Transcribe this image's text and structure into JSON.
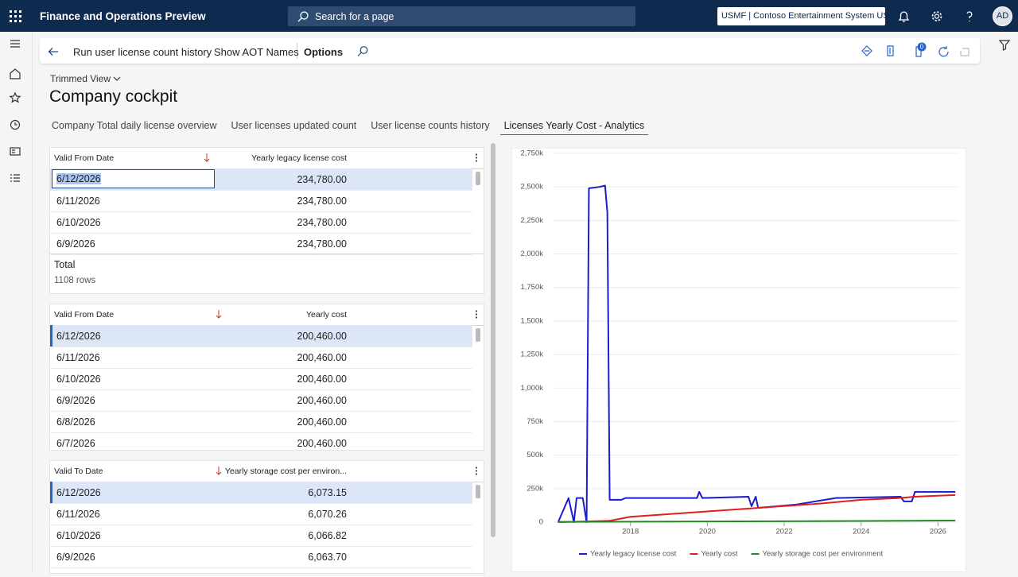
{
  "header": {
    "app_title": "Finance and Operations Preview",
    "search_placeholder": "Search for a page",
    "company": "USMF | Contoso Entertainment System USA",
    "user_initials": "AD"
  },
  "toolbar": {
    "items": [
      "Run user license count history",
      "Show AOT Names",
      "Options"
    ],
    "badge": "0"
  },
  "view": "Trimmed View",
  "page_title": "Company cockpit",
  "tabs": [
    "Company Total daily license overview",
    "User licenses updated count",
    "User license counts history",
    "Licenses Yearly Cost - Analytics"
  ],
  "active_tab": 3,
  "grids": [
    {
      "columns": [
        "Valid From Date",
        "Yearly legacy license cost"
      ],
      "rows": [
        [
          "6/12/2026",
          "234,780.00"
        ],
        [
          "6/11/2026",
          "234,780.00"
        ],
        [
          "6/10/2026",
          "234,780.00"
        ],
        [
          "6/9/2026",
          "234,780.00"
        ]
      ],
      "footer_label": "Total",
      "footer_count": "1108 rows"
    },
    {
      "columns": [
        "Valid From Date",
        "Yearly cost"
      ],
      "rows": [
        [
          "6/12/2026",
          "200,460.00"
        ],
        [
          "6/11/2026",
          "200,460.00"
        ],
        [
          "6/10/2026",
          "200,460.00"
        ],
        [
          "6/9/2026",
          "200,460.00"
        ],
        [
          "6/8/2026",
          "200,460.00"
        ],
        [
          "6/7/2026",
          "200,460.00"
        ]
      ]
    },
    {
      "columns": [
        "Valid To Date",
        "Yearly storage cost per environ..."
      ],
      "rows": [
        [
          "6/12/2026",
          "6,073.15"
        ],
        [
          "6/11/2026",
          "6,070.26"
        ],
        [
          "6/10/2026",
          "6,066.82"
        ],
        [
          "6/9/2026",
          "6,063.70"
        ]
      ]
    }
  ],
  "chart_data": {
    "type": "line",
    "xlim": [
      2016,
      2026.55
    ],
    "xticks": [
      2018,
      2020,
      2022,
      2024,
      2026
    ],
    "ylim": [
      0,
      2750000
    ],
    "yticks": [
      {
        "value": 0,
        "label": "0"
      },
      {
        "value": 250000,
        "label": "250k"
      },
      {
        "value": 500000,
        "label": "500k"
      },
      {
        "value": 750000,
        "label": "750k"
      },
      {
        "value": 1000000,
        "label": "1,000k"
      },
      {
        "value": 1250000,
        "label": "1,250k"
      },
      {
        "value": 1500000,
        "label": "1,500k"
      },
      {
        "value": 1750000,
        "label": "1,750k"
      },
      {
        "value": 2000000,
        "label": "2,000k"
      },
      {
        "value": 2250000,
        "label": "2,250k"
      },
      {
        "value": 2500000,
        "label": "2,500k"
      },
      {
        "value": 2750000,
        "label": "2,750k"
      }
    ],
    "grid": true,
    "series": [
      {
        "name": "Yearly legacy license cost",
        "color": "#1c1ccf",
        "x": [
          2016.12,
          2016.39,
          2016.53,
          2016.6,
          2016.76,
          2016.86,
          2016.92,
          2017.19,
          2017.34,
          2017.4,
          2017.46,
          2017.77,
          2017.87,
          2019.73,
          2019.79,
          2019.87,
          2021.07,
          2021.15,
          2021.26,
          2021.32,
          2022.31,
          2023.34,
          2025.03,
          2025.11,
          2025.32,
          2025.4,
          2026.45
        ],
        "values": [
          0,
          180000,
          0,
          180000,
          180000,
          0,
          2490000,
          2500000,
          2510000,
          2310000,
          167000,
          167000,
          180000,
          180000,
          226000,
          180000,
          190000,
          119000,
          190000,
          107000,
          131000,
          180000,
          190000,
          155000,
          155000,
          226000,
          226000
        ]
      },
      {
        "name": "Yearly cost",
        "color": "#e01e1e",
        "x": [
          2016.12,
          2017.45,
          2018,
          2019,
          2020,
          2021,
          2022,
          2023,
          2024,
          2025,
          2025.4,
          2025.8,
          2026.45
        ],
        "values": [
          0,
          10000,
          40000,
          60000,
          80000,
          100000,
          120000,
          140000,
          167000,
          180000,
          190000,
          195000,
          202000
        ]
      },
      {
        "name": "Yearly storage cost per environment",
        "color": "#1e8c1e",
        "x": [
          2016.12,
          2020,
          2024,
          2026.45
        ],
        "values": [
          2000,
          5000,
          9000,
          12000
        ]
      }
    ]
  }
}
